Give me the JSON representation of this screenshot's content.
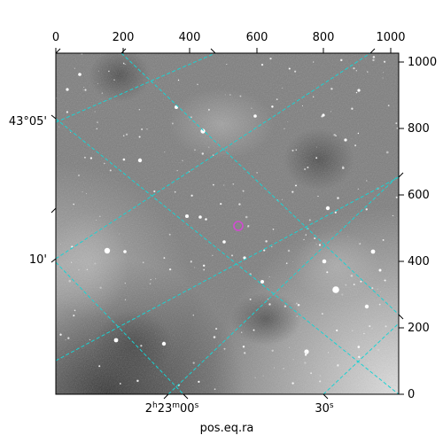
{
  "pixel_axis": {
    "top_ticks": [
      "0",
      "200",
      "400",
      "600",
      "800",
      "1000"
    ],
    "right_ticks": [
      "0",
      "200",
      "400",
      "600",
      "800",
      "1000"
    ]
  },
  "world_axis": {
    "dec_labels": [
      "43°05'",
      "10'"
    ],
    "ra_labels": [
      {
        "main": "2",
        "h": "h",
        "m1": "23",
        "m": "m",
        "s1": "00",
        "s": "s"
      },
      {
        "main": "30",
        "s": "s"
      }
    ],
    "xlabel": "pos.eq.ra"
  },
  "colors": {
    "grid": "#19d3d3",
    "marker": "#d24ad2",
    "frame": "#000000"
  },
  "marker": {
    "shape": "circle",
    "description_icon": "target-circle-icon"
  }
}
